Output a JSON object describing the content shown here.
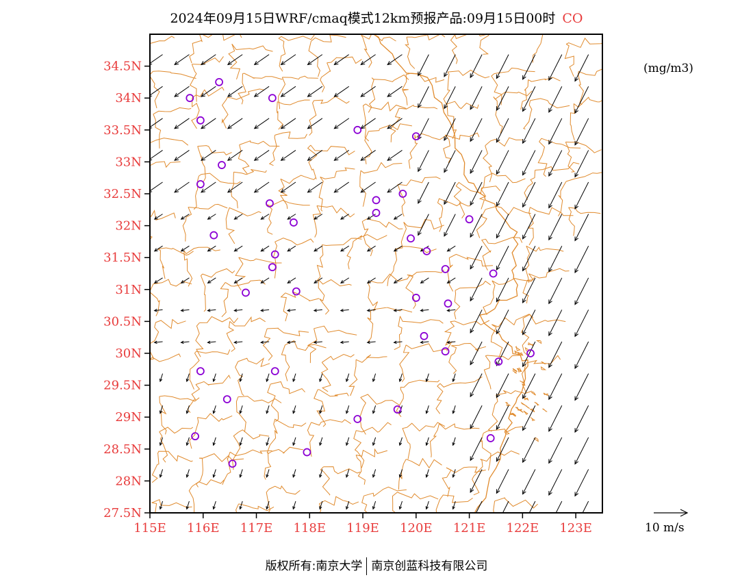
{
  "title": {
    "text": "2024年09月15日WRF/cmaq模式12km预报产品:09月15日00时",
    "pollutant": "CO"
  },
  "unit_label": "(mg/m3)",
  "vector_legend_label": "10 m/s",
  "footer": {
    "left": "版权所有:南京大学",
    "right": "南京创蓝科技有限公司"
  },
  "colors": {
    "tick_labels": "#e83c3c",
    "boundaries": "#e08a2c",
    "stations": "#8b00d4",
    "wind_arrows": "#000000"
  },
  "map": {
    "lon_range": [
      115,
      123.5
    ],
    "lat_range": [
      27.5,
      35
    ],
    "lat_ticks": [
      "27.5N",
      "28N",
      "28.5N",
      "29N",
      "29.5N",
      "30N",
      "30.5N",
      "31N",
      "31.5N",
      "32N",
      "32.5N",
      "33N",
      "33.5N",
      "34N",
      "34.5N"
    ],
    "lon_ticks": [
      "115E",
      "116E",
      "117E",
      "118E",
      "119E",
      "120E",
      "121E",
      "122E",
      "123E"
    ],
    "stations": [
      {
        "lon": 116.3,
        "lat": 34.25
      },
      {
        "lon": 115.75,
        "lat": 34.0
      },
      {
        "lon": 117.3,
        "lat": 34.0
      },
      {
        "lon": 115.95,
        "lat": 33.65
      },
      {
        "lon": 118.9,
        "lat": 33.5
      },
      {
        "lon": 120.0,
        "lat": 33.4
      },
      {
        "lon": 116.35,
        "lat": 32.95
      },
      {
        "lon": 115.95,
        "lat": 32.65
      },
      {
        "lon": 119.75,
        "lat": 32.5
      },
      {
        "lon": 119.25,
        "lat": 32.4
      },
      {
        "lon": 117.25,
        "lat": 32.35
      },
      {
        "lon": 119.25,
        "lat": 32.2
      },
      {
        "lon": 121.0,
        "lat": 32.1
      },
      {
        "lon": 117.7,
        "lat": 32.05
      },
      {
        "lon": 116.2,
        "lat": 31.85
      },
      {
        "lon": 119.9,
        "lat": 31.8
      },
      {
        "lon": 120.2,
        "lat": 31.6
      },
      {
        "lon": 117.35,
        "lat": 31.55
      },
      {
        "lon": 117.3,
        "lat": 31.35
      },
      {
        "lon": 120.55,
        "lat": 31.32
      },
      {
        "lon": 121.45,
        "lat": 31.25
      },
      {
        "lon": 116.8,
        "lat": 30.95
      },
      {
        "lon": 117.75,
        "lat": 30.97
      },
      {
        "lon": 120.0,
        "lat": 30.87
      },
      {
        "lon": 120.6,
        "lat": 30.78
      },
      {
        "lon": 120.15,
        "lat": 30.27
      },
      {
        "lon": 120.55,
        "lat": 30.03
      },
      {
        "lon": 122.15,
        "lat": 30.0
      },
      {
        "lon": 121.55,
        "lat": 29.87
      },
      {
        "lon": 115.95,
        "lat": 29.72
      },
      {
        "lon": 117.35,
        "lat": 29.72
      },
      {
        "lon": 116.45,
        "lat": 29.28
      },
      {
        "lon": 119.65,
        "lat": 29.12
      },
      {
        "lon": 118.9,
        "lat": 28.97
      },
      {
        "lon": 115.85,
        "lat": 28.7
      },
      {
        "lon": 121.4,
        "lat": 28.67
      },
      {
        "lon": 117.95,
        "lat": 28.45
      },
      {
        "lon": 116.55,
        "lat": 28.27
      }
    ]
  }
}
